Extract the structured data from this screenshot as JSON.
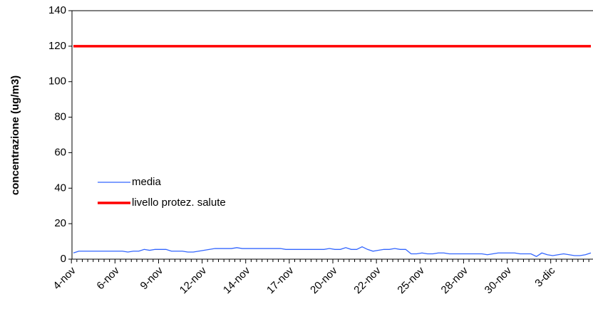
{
  "chart_data": {
    "type": "line",
    "y_label": "concentrazione (ug/m3)",
    "categories": [
      "4-nov",
      null,
      null,
      null,
      null,
      null,
      null,
      null,
      "6-nov",
      null,
      null,
      null,
      null,
      null,
      null,
      null,
      "9-nov",
      null,
      null,
      null,
      null,
      null,
      null,
      null,
      "12-nov",
      null,
      null,
      null,
      null,
      null,
      null,
      null,
      "14-nov",
      null,
      null,
      null,
      null,
      null,
      null,
      null,
      "17-nov",
      null,
      null,
      null,
      null,
      null,
      null,
      null,
      "20-nov",
      null,
      null,
      null,
      null,
      null,
      null,
      null,
      "22-nov",
      null,
      null,
      null,
      null,
      null,
      null,
      null,
      "25-nov",
      null,
      null,
      null,
      null,
      null,
      null,
      null,
      "28-nov",
      null,
      null,
      null,
      null,
      null,
      null,
      null,
      "30-nov",
      null,
      null,
      null,
      null,
      null,
      null,
      null,
      "3-dic",
      null,
      null,
      null,
      null,
      null,
      null,
      null
    ],
    "series": [
      {
        "name": "media",
        "color": "#3366ff",
        "values": [
          3.5,
          4.5,
          4.5,
          4.5,
          4.5,
          4.5,
          4.5,
          4.5,
          4.5,
          4.5,
          4,
          4.5,
          4.5,
          5.5,
          5,
          5.5,
          5.5,
          5.5,
          4.5,
          4.5,
          4.5,
          4,
          4,
          4.5,
          5,
          5.5,
          6,
          6,
          6,
          6,
          6.5,
          6,
          6,
          6,
          6,
          6,
          6,
          6,
          6,
          5.5,
          5.5,
          5.5,
          5.5,
          5.5,
          5.5,
          5.5,
          5.5,
          6,
          5.5,
          5.5,
          6.5,
          5.5,
          5.5,
          7,
          5.5,
          4.5,
          5,
          5.5,
          5.5,
          6,
          5.5,
          5.5,
          3,
          3,
          3.5,
          3,
          3,
          3.5,
          3.5,
          3,
          3,
          3,
          3,
          3,
          3,
          3,
          2.5,
          3,
          3.5,
          3.5,
          3.5,
          3.5,
          3,
          3,
          3,
          1.5,
          3.5,
          2.5,
          2,
          2.5,
          3,
          2.5,
          2,
          2,
          2.5,
          3.5
        ]
      },
      {
        "name": "livello protez. salute",
        "color": "#ff0000",
        "values": [
          120,
          120,
          120,
          120,
          120,
          120,
          120,
          120,
          120,
          120,
          120,
          120,
          120,
          120,
          120,
          120,
          120,
          120,
          120,
          120,
          120,
          120,
          120,
          120,
          120,
          120,
          120,
          120,
          120,
          120,
          120,
          120,
          120,
          120,
          120,
          120,
          120,
          120,
          120,
          120,
          120,
          120,
          120,
          120,
          120,
          120,
          120,
          120,
          120,
          120,
          120,
          120,
          120,
          120,
          120,
          120,
          120,
          120,
          120,
          120,
          120,
          120,
          120,
          120,
          120,
          120,
          120,
          120,
          120,
          120,
          120,
          120,
          120,
          120,
          120,
          120,
          120,
          120,
          120,
          120,
          120,
          120,
          120,
          120,
          120,
          120,
          120,
          120,
          120,
          120,
          120,
          120,
          120,
          120,
          120,
          120
        ]
      }
    ],
    "ylim": [
      0,
      140
    ],
    "yticks": [
      0,
      20,
      40,
      60,
      80,
      100,
      120,
      140
    ],
    "legend": "left"
  }
}
